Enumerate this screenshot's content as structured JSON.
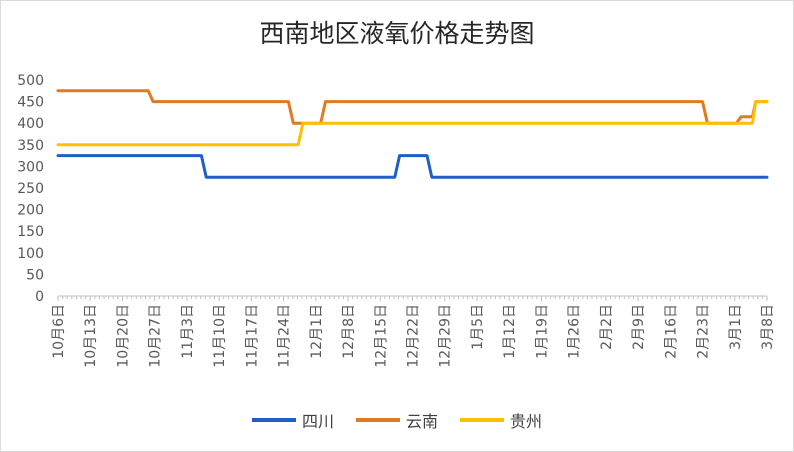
{
  "chart_data": {
    "type": "line",
    "title": "西南地区液氧价格走势图",
    "ylim": [
      0,
      500
    ],
    "yticks": [
      0,
      50,
      100,
      150,
      200,
      250,
      300,
      350,
      400,
      450,
      500
    ],
    "grid": false,
    "legend": "bottom",
    "categories": [
      "10月6日",
      "10月13日",
      "10月20日",
      "10月27日",
      "11月3日",
      "11月10日",
      "11月17日",
      "11月24日",
      "12月1日",
      "12月8日",
      "12月15日",
      "12月22日",
      "12月29日",
      "1月5日",
      "1月12日",
      "1月19日",
      "1月26日",
      "2月2日",
      "2月9日",
      "2月16日",
      "2月23日",
      "3月1日",
      "3月8日"
    ],
    "series": [
      {
        "name": "四川",
        "color": "#1f5fc7",
        "points": [
          [
            0,
            325
          ],
          [
            4.45,
            325
          ],
          [
            4.6,
            275
          ],
          [
            10.45,
            275
          ],
          [
            10.6,
            325
          ],
          [
            11.45,
            325
          ],
          [
            11.6,
            275
          ],
          [
            22.0,
            275
          ]
        ]
      },
      {
        "name": "云南",
        "color": "#e07b1f",
        "points": [
          [
            0,
            475
          ],
          [
            2.8,
            475
          ],
          [
            2.95,
            450
          ],
          [
            7.15,
            450
          ],
          [
            7.3,
            400
          ],
          [
            8.15,
            400
          ],
          [
            8.3,
            450
          ],
          [
            20.0,
            450
          ],
          [
            20.15,
            400
          ],
          [
            21.05,
            400
          ],
          [
            21.2,
            415
          ],
          [
            21.55,
            415
          ],
          [
            21.65,
            450
          ],
          [
            22.0,
            450
          ]
        ]
      },
      {
        "name": "贵州",
        "color": "#ffc000",
        "points": [
          [
            0,
            350
          ],
          [
            7.45,
            350
          ],
          [
            7.6,
            400
          ],
          [
            21.55,
            400
          ],
          [
            21.65,
            450
          ],
          [
            22.0,
            450
          ]
        ]
      }
    ]
  }
}
